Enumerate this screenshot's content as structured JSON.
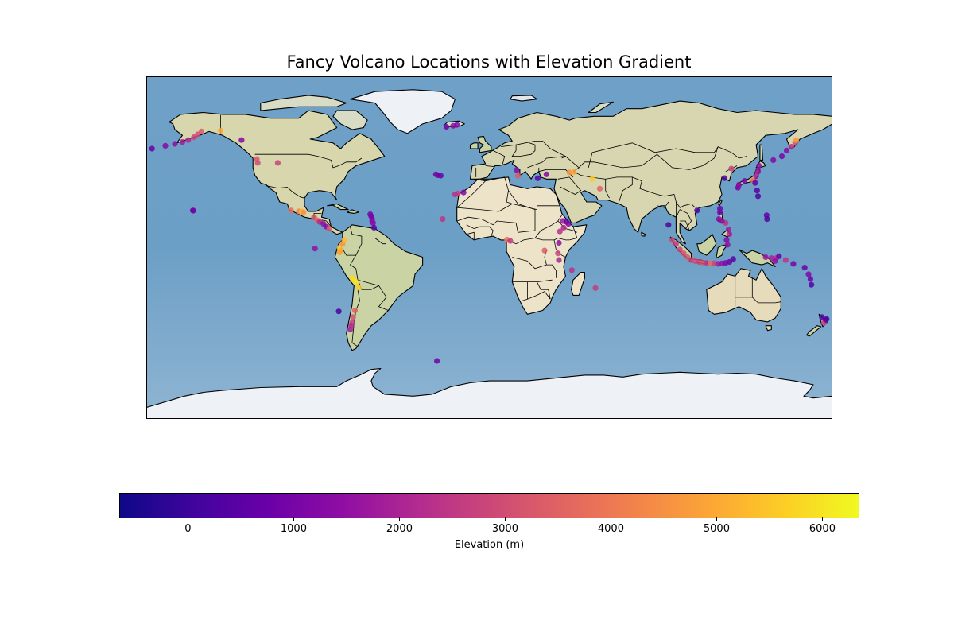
{
  "title": "Fancy Volcano Locations with Elevation Gradient",
  "colorbar": {
    "label": "Elevation (m)",
    "colormap": "plasma",
    "range": [
      -650,
      6350
    ],
    "ticks": [
      0,
      1000,
      2000,
      3000,
      4000,
      5000,
      6000
    ],
    "tick_labels": [
      "0",
      "1000",
      "2000",
      "3000",
      "4000",
      "5000",
      "6000"
    ]
  },
  "colors": {
    "ocean": "#7aa6c9",
    "land": "#d9d7b4",
    "ice": "#eef1f6",
    "border": "#000000"
  },
  "chart_data": {
    "type": "scatter",
    "title": "Fancy Volcano Locations with Elevation Gradient",
    "projection": "PlateCarree",
    "xlim": [
      -180,
      180
    ],
    "ylim": [
      -90,
      90
    ],
    "color_variable": "Elevation (m)",
    "points": [
      {
        "lon": -155.3,
        "lat": 19.4,
        "elev": 1000
      },
      {
        "lon": -155.6,
        "lat": 19.5,
        "elev": 900
      },
      {
        "lon": -177.0,
        "lat": 52.0,
        "elev": 700
      },
      {
        "lon": -170.0,
        "lat": 53.5,
        "elev": 1200
      },
      {
        "lon": -165.0,
        "lat": 54.5,
        "elev": 1400
      },
      {
        "lon": -161.0,
        "lat": 55.5,
        "elev": 1800
      },
      {
        "lon": -158.0,
        "lat": 56.5,
        "elev": 2200
      },
      {
        "lon": -155.0,
        "lat": 58.0,
        "elev": 2800
      },
      {
        "lon": -153.0,
        "lat": 59.5,
        "elev": 3000
      },
      {
        "lon": -151.0,
        "lat": 61.0,
        "elev": 3300
      },
      {
        "lon": -141.0,
        "lat": 61.5,
        "elev": 5000
      },
      {
        "lon": -130.0,
        "lat": 56.5,
        "elev": 1200
      },
      {
        "lon": -122.0,
        "lat": 46.5,
        "elev": 3200
      },
      {
        "lon": -121.5,
        "lat": 44.5,
        "elev": 3000
      },
      {
        "lon": -111.0,
        "lat": 44.5,
        "elev": 2800
      },
      {
        "lon": -104.0,
        "lat": 19.5,
        "elev": 3800
      },
      {
        "lon": -100.0,
        "lat": 19.0,
        "elev": 4200
      },
      {
        "lon": -98.5,
        "lat": 19.0,
        "elev": 5300
      },
      {
        "lon": -97.5,
        "lat": 18.5,
        "elev": 4500
      },
      {
        "lon": -92.0,
        "lat": 16.0,
        "elev": 3000
      },
      {
        "lon": -90.5,
        "lat": 14.5,
        "elev": 3700
      },
      {
        "lon": -89.0,
        "lat": 13.5,
        "elev": 2200
      },
      {
        "lon": -87.0,
        "lat": 12.5,
        "elev": 1500
      },
      {
        "lon": -85.5,
        "lat": 11.0,
        "elev": 1400
      },
      {
        "lon": -84.0,
        "lat": 10.0,
        "elev": 3300
      },
      {
        "lon": -91.5,
        "lat": -0.5,
        "elev": 1500
      },
      {
        "lon": -78.5,
        "lat": 0.0,
        "elev": 5700
      },
      {
        "lon": -78.0,
        "lat": -1.5,
        "elev": 5000
      },
      {
        "lon": -78.5,
        "lat": -2.5,
        "elev": 4800
      },
      {
        "lon": -77.0,
        "lat": 2.0,
        "elev": 4500
      },
      {
        "lon": -76.0,
        "lat": 4.0,
        "elev": 5300
      },
      {
        "lon": -72.0,
        "lat": -16.0,
        "elev": 5800
      },
      {
        "lon": -71.0,
        "lat": -17.0,
        "elev": 5900
      },
      {
        "lon": -70.0,
        "lat": -18.0,
        "elev": 6000
      },
      {
        "lon": -68.5,
        "lat": -21.0,
        "elev": 5600
      },
      {
        "lon": -70.5,
        "lat": -33.0,
        "elev": 3500
      },
      {
        "lon": -71.5,
        "lat": -36.5,
        "elev": 3000
      },
      {
        "lon": -72.0,
        "lat": -39.5,
        "elev": 2500
      },
      {
        "lon": -72.5,
        "lat": -41.0,
        "elev": 2000
      },
      {
        "lon": -73.0,
        "lat": -43.0,
        "elev": 1800
      },
      {
        "lon": -79.0,
        "lat": -33.5,
        "elev": 200
      },
      {
        "lon": -61.0,
        "lat": 13.0,
        "elev": 1200
      },
      {
        "lon": -61.5,
        "lat": 15.0,
        "elev": 1300
      },
      {
        "lon": -62.0,
        "lat": 16.5,
        "elev": 900
      },
      {
        "lon": -62.5,
        "lat": 17.5,
        "elev": 1000
      },
      {
        "lon": -61.5,
        "lat": 14.0,
        "elev": 1400
      },
      {
        "lon": -60.5,
        "lat": 10.5,
        "elev": 500
      },
      {
        "lon": -27.5,
        "lat": -59.5,
        "elev": 900
      },
      {
        "lon": -19.0,
        "lat": 64.0,
        "elev": 1500
      },
      {
        "lon": -17.0,
        "lat": 64.5,
        "elev": 1200
      },
      {
        "lon": -22.5,
        "lat": 63.5,
        "elev": 800
      },
      {
        "lon": -28.0,
        "lat": 38.5,
        "elev": 900
      },
      {
        "lon": -27.0,
        "lat": 38.0,
        "elev": 1000
      },
      {
        "lon": -25.5,
        "lat": 37.8,
        "elev": 700
      },
      {
        "lon": -16.5,
        "lat": 28.5,
        "elev": 2800
      },
      {
        "lon": -18.0,
        "lat": 28.0,
        "elev": 2300
      },
      {
        "lon": -13.5,
        "lat": 29.0,
        "elev": 1200
      },
      {
        "lon": -24.5,
        "lat": 15.0,
        "elev": 2400
      },
      {
        "lon": 15.0,
        "lat": 37.7,
        "elev": 3300
      },
      {
        "lon": 14.4,
        "lat": 40.8,
        "elev": 1300
      },
      {
        "lon": 25.4,
        "lat": 36.4,
        "elev": 500
      },
      {
        "lon": 30.0,
        "lat": 38.5,
        "elev": 1200
      },
      {
        "lon": 42.0,
        "lat": 39.5,
        "elev": 4500
      },
      {
        "lon": 44.3,
        "lat": 39.7,
        "elev": 4900
      },
      {
        "lon": 38.5,
        "lat": 14.0,
        "elev": 1700
      },
      {
        "lon": 40.5,
        "lat": 13.5,
        "elev": 600
      },
      {
        "lon": 41.5,
        "lat": 12.5,
        "elev": 1200
      },
      {
        "lon": 39.0,
        "lat": 10.5,
        "elev": 2100
      },
      {
        "lon": 37.0,
        "lat": 8.5,
        "elev": 2300
      },
      {
        "lon": 36.5,
        "lat": 2.5,
        "elev": 1500
      },
      {
        "lon": 36.0,
        "lat": -3.0,
        "elev": 2800
      },
      {
        "lon": 36.5,
        "lat": -6.5,
        "elev": 2000
      },
      {
        "lon": 29.0,
        "lat": -1.5,
        "elev": 3400
      },
      {
        "lon": 9.2,
        "lat": 4.2,
        "elev": 4000
      },
      {
        "lon": 11.0,
        "lat": 3.5,
        "elev": 2500
      },
      {
        "lon": 43.3,
        "lat": -11.8,
        "elev": 2300
      },
      {
        "lon": 55.7,
        "lat": -21.2,
        "elev": 2600
      },
      {
        "lon": 58.0,
        "lat": 31.0,
        "elev": 3500
      },
      {
        "lon": 54.0,
        "lat": 36.0,
        "elev": 5600
      },
      {
        "lon": 94.0,
        "lat": 12.0,
        "elev": 300
      },
      {
        "lon": 96.0,
        "lat": 4.0,
        "elev": 2800
      },
      {
        "lon": 98.0,
        "lat": 2.0,
        "elev": 2500
      },
      {
        "lon": 100.0,
        "lat": -1.0,
        "elev": 2800
      },
      {
        "lon": 102.0,
        "lat": -3.0,
        "elev": 3000
      },
      {
        "lon": 104.0,
        "lat": -5.0,
        "elev": 3200
      },
      {
        "lon": 106.0,
        "lat": -6.5,
        "elev": 2800
      },
      {
        "lon": 108.0,
        "lat": -7.0,
        "elev": 3000
      },
      {
        "lon": 110.0,
        "lat": -7.5,
        "elev": 2800
      },
      {
        "lon": 112.0,
        "lat": -7.8,
        "elev": 3100
      },
      {
        "lon": 114.0,
        "lat": -8.0,
        "elev": 2500
      },
      {
        "lon": 116.0,
        "lat": -8.3,
        "elev": 3700
      },
      {
        "lon": 118.0,
        "lat": -8.2,
        "elev": 2800
      },
      {
        "lon": 120.0,
        "lat": -8.5,
        "elev": 1800
      },
      {
        "lon": 122.0,
        "lat": -8.3,
        "elev": 1500
      },
      {
        "lon": 124.0,
        "lat": -8.0,
        "elev": 1000
      },
      {
        "lon": 126.0,
        "lat": -7.5,
        "elev": 800
      },
      {
        "lon": 128.0,
        "lat": -6.0,
        "elev": 500
      },
      {
        "lon": 125.0,
        "lat": 1.5,
        "elev": 1500
      },
      {
        "lon": 124.5,
        "lat": 4.0,
        "elev": 1200
      },
      {
        "lon": 126.0,
        "lat": 7.0,
        "elev": 2000
      },
      {
        "lon": 125.5,
        "lat": 9.5,
        "elev": 1800
      },
      {
        "lon": 124.0,
        "lat": 13.0,
        "elev": 2400
      },
      {
        "lon": 122.0,
        "lat": 14.0,
        "elev": 1600
      },
      {
        "lon": 120.5,
        "lat": 15.0,
        "elev": 1400
      },
      {
        "lon": 121.0,
        "lat": 18.5,
        "elev": 1000
      },
      {
        "lon": 121.0,
        "lat": 20.5,
        "elev": 800
      },
      {
        "lon": 130.5,
        "lat": 31.5,
        "elev": 1100
      },
      {
        "lon": 131.0,
        "lat": 33.0,
        "elev": 1300
      },
      {
        "lon": 134.0,
        "lat": 35.0,
        "elev": 900
      },
      {
        "lon": 138.5,
        "lat": 35.3,
        "elev": 3700
      },
      {
        "lon": 139.5,
        "lat": 34.0,
        "elev": 600
      },
      {
        "lon": 140.0,
        "lat": 37.5,
        "elev": 1900
      },
      {
        "lon": 141.0,
        "lat": 40.0,
        "elev": 1600
      },
      {
        "lon": 141.5,
        "lat": 43.0,
        "elev": 1300
      },
      {
        "lon": 140.5,
        "lat": 30.0,
        "elev": 400
      },
      {
        "lon": 141.0,
        "lat": 27.0,
        "elev": 300
      },
      {
        "lon": 145.5,
        "lat": 17.0,
        "elev": 600
      },
      {
        "lon": 145.7,
        "lat": 15.0,
        "elev": 400
      },
      {
        "lon": 127.0,
        "lat": 41.5,
        "elev": 2700
      },
      {
        "lon": 123.5,
        "lat": 36.5,
        "elev": 300
      },
      {
        "lon": 109.0,
        "lat": 19.5,
        "elev": 200
      },
      {
        "lon": 145.0,
        "lat": -5.0,
        "elev": 1700
      },
      {
        "lon": 148.0,
        "lat": -5.5,
        "elev": 1900
      },
      {
        "lon": 150.5,
        "lat": -5.5,
        "elev": 2300
      },
      {
        "lon": 152.0,
        "lat": -4.5,
        "elev": 700
      },
      {
        "lon": 155.5,
        "lat": -6.5,
        "elev": 2400
      },
      {
        "lon": 159.5,
        "lat": -8.5,
        "elev": 1000
      },
      {
        "lon": 165.5,
        "lat": -10.5,
        "elev": 800
      },
      {
        "lon": 167.5,
        "lat": -14.0,
        "elev": 1100
      },
      {
        "lon": 168.5,
        "lat": -16.5,
        "elev": 800
      },
      {
        "lon": 169.0,
        "lat": -19.5,
        "elev": 400
      },
      {
        "lon": 150.0,
        "lat": -7.0,
        "elev": 1500
      },
      {
        "lon": 158.5,
        "lat": 53.0,
        "elev": 2300
      },
      {
        "lon": 160.5,
        "lat": 55.0,
        "elev": 3000
      },
      {
        "lon": 161.0,
        "lat": 56.5,
        "elev": 4700
      },
      {
        "lon": 156.0,
        "lat": 51.0,
        "elev": 1300
      },
      {
        "lon": 153.5,
        "lat": 48.0,
        "elev": 1000
      },
      {
        "lon": 149.0,
        "lat": 46.0,
        "elev": 1200
      },
      {
        "lon": 175.6,
        "lat": -39.3,
        "elev": 2700
      },
      {
        "lon": 176.5,
        "lat": -38.0,
        "elev": 1100
      },
      {
        "lon": 177.0,
        "lat": -37.5,
        "elev": 300
      },
      {
        "lon": 174.5,
        "lat": -36.5,
        "elev": 200
      }
    ]
  }
}
